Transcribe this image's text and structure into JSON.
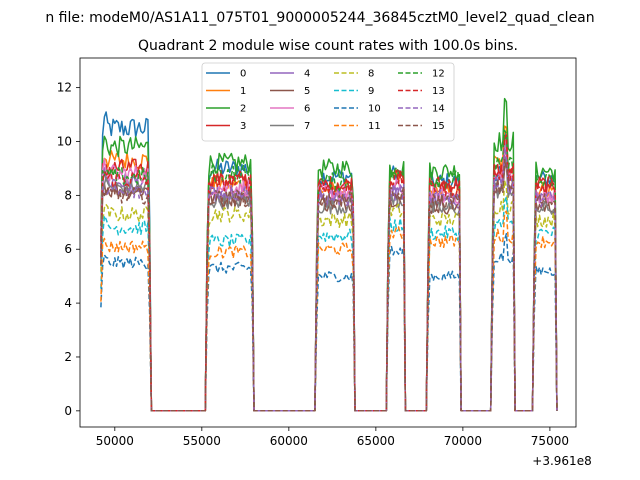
{
  "chart_data": {
    "type": "line",
    "suptitle": "n file: modeM0/AS1A11_075T01_9000005244_36845cztM0_level2_quad_clean",
    "title": "Quadrant 2 module wise count rates with 100.0s bins.",
    "xlabel": "",
    "ylabel": "",
    "x_offset_label": "+3.961e8",
    "xlim": [
      48000,
      76500
    ],
    "ylim": [
      -0.6,
      13.1
    ],
    "x_ticks": [
      50000,
      55000,
      60000,
      65000,
      70000,
      75000
    ],
    "y_ticks": [
      0,
      2,
      4,
      6,
      8,
      10,
      12
    ],
    "grid": false,
    "legend_position": "top-center",
    "segments": [
      {
        "start": 49200,
        "end": 52100
      },
      {
        "start": 55300,
        "end": 58000
      },
      {
        "start": 61600,
        "end": 63800
      },
      {
        "start": 65700,
        "end": 66700
      },
      {
        "start": 68000,
        "end": 69900
      },
      {
        "start": 71700,
        "end": 73000
      },
      {
        "start": 74100,
        "end": 75400
      }
    ],
    "bin_width": 100,
    "series": [
      {
        "name": "0",
        "color": "#1f77b4",
        "dash": false,
        "levels": [
          10.5,
          9.0,
          8.7,
          8.8,
          8.5,
          8.9,
          8.6
        ]
      },
      {
        "name": "1",
        "color": "#ff7f0e",
        "dash": false,
        "levels": [
          9.3,
          8.4,
          8.2,
          8.6,
          8.1,
          9.2,
          8.2
        ]
      },
      {
        "name": "2",
        "color": "#2ca02c",
        "dash": false,
        "levels": [
          9.8,
          9.2,
          9.0,
          9.0,
          8.9,
          10.0,
          8.9
        ]
      },
      {
        "name": "3",
        "color": "#d62728",
        "dash": false,
        "levels": [
          9.0,
          8.6,
          8.4,
          8.6,
          8.4,
          8.9,
          8.4
        ]
      },
      {
        "name": "4",
        "color": "#9467bd",
        "dash": false,
        "levels": [
          8.5,
          8.0,
          7.9,
          8.1,
          7.8,
          8.6,
          7.8
        ]
      },
      {
        "name": "5",
        "color": "#8c564b",
        "dash": false,
        "levels": [
          8.2,
          7.9,
          7.7,
          7.9,
          7.6,
          8.3,
          7.6
        ]
      },
      {
        "name": "6",
        "color": "#e377c2",
        "dash": false,
        "levels": [
          8.8,
          8.3,
          8.1,
          8.3,
          8.0,
          8.7,
          8.0
        ]
      },
      {
        "name": "7",
        "color": "#7f7f7f",
        "dash": false,
        "levels": [
          8.3,
          7.8,
          7.6,
          7.8,
          7.5,
          8.2,
          7.5
        ]
      },
      {
        "name": "8",
        "color": "#bcbd22",
        "dash": true,
        "levels": [
          7.3,
          7.3,
          7.1,
          7.4,
          7.1,
          7.6,
          7.1
        ]
      },
      {
        "name": "9",
        "color": "#17becf",
        "dash": true,
        "levels": [
          6.8,
          6.3,
          6.5,
          6.9,
          6.6,
          6.9,
          6.6
        ]
      },
      {
        "name": "10",
        "color": "#1f77b4",
        "dash": true,
        "levels": [
          5.5,
          5.3,
          5.0,
          5.9,
          5.0,
          5.7,
          5.2
        ]
      },
      {
        "name": "11",
        "color": "#ff7f0e",
        "dash": true,
        "levels": [
          6.1,
          5.9,
          6.0,
          6.6,
          6.3,
          6.5,
          6.3
        ]
      },
      {
        "name": "12",
        "color": "#2ca02c",
        "dash": true,
        "levels": [
          8.7,
          8.8,
          8.5,
          8.8,
          8.6,
          9.1,
          8.5
        ]
      },
      {
        "name": "13",
        "color": "#d62728",
        "dash": true,
        "levels": [
          8.6,
          8.5,
          8.3,
          8.6,
          8.3,
          8.8,
          8.3
        ]
      },
      {
        "name": "14",
        "color": "#9467bd",
        "dash": true,
        "levels": [
          8.1,
          8.1,
          7.9,
          8.1,
          7.9,
          8.4,
          7.9
        ]
      },
      {
        "name": "15",
        "color": "#8c564b",
        "dash": true,
        "levels": [
          8.0,
          7.9,
          7.8,
          8.0,
          7.8,
          8.3,
          7.8
        ]
      }
    ]
  }
}
